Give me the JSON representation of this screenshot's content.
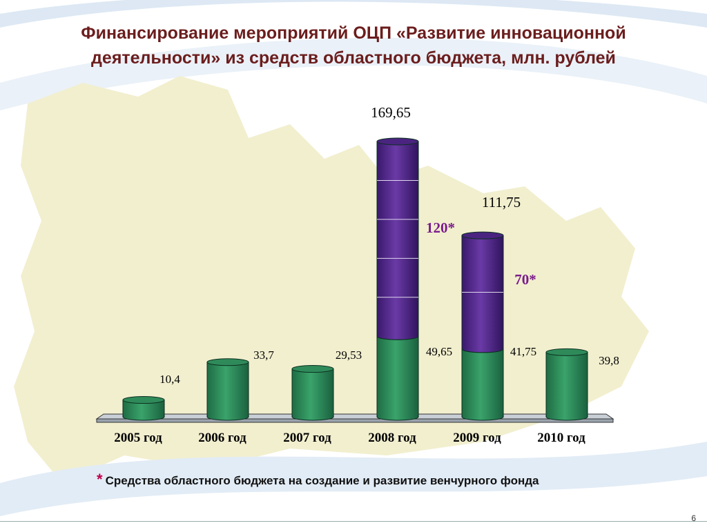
{
  "slide": {
    "title": "Финансирование мероприятий ОЦП «Развитие инновационной деятельности» из средств областного бюджета, млн. рублей",
    "footnote_marker": "*",
    "footnote": "Средства областного бюджета на создание и развитие венчурного фонда",
    "page_number": "6"
  },
  "colors": {
    "title": "#6b1d1d",
    "green": "#2e8b57",
    "purple": "#5a2d91",
    "venture_label": "#7a1c8a",
    "background_map": "#f2efcf",
    "background_swoosh": "#dde8f4"
  },
  "chart_data": {
    "type": "bar",
    "stacked": true,
    "categories": [
      "2005 год",
      "2006 год",
      "2007 год",
      "2008 год",
      "2009 год",
      "2010 год"
    ],
    "series": [
      {
        "values": [
          10.4,
          33.7,
          29.53,
          49.65,
          41.75,
          39.8
        ]
      },
      {
        "values": [
          0,
          0,
          0,
          120,
          70,
          0
        ]
      }
    ],
    "base_labels": [
      "10,4",
      "33,7",
      "29,53",
      "49,65",
      "41,75",
      "39,8"
    ],
    "venture_labels": [
      "",
      "",
      "",
      "120*",
      "70*",
      ""
    ],
    "total_labels": [
      "",
      "",
      "",
      "169,65",
      "111,75",
      ""
    ],
    "ylim": [
      0,
      170
    ],
    "grid": false,
    "legend": "none"
  }
}
